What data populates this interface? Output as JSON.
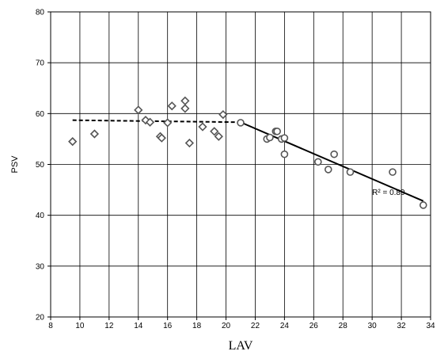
{
  "chart_data": {
    "type": "scatter",
    "xlabel": "LAV",
    "ylabel": "PSV",
    "xlim": [
      8,
      34
    ],
    "ylim": [
      20,
      80
    ],
    "x_ticks": [
      "8",
      "10",
      "12",
      "14",
      "16",
      "18",
      "20",
      "22",
      "24",
      "26",
      "28",
      "30",
      "32",
      "34"
    ],
    "y_ticks": [
      "20",
      "30",
      "40",
      "50",
      "60",
      "70",
      "80"
    ],
    "grid": true,
    "series": [
      {
        "marker": "diamond",
        "color": "#555555",
        "points": [
          [
            9.5,
            54.5
          ],
          [
            11.0,
            56.0
          ],
          [
            14.0,
            60.7
          ],
          [
            14.5,
            58.7
          ],
          [
            14.8,
            58.3
          ],
          [
            15.5,
            55.5
          ],
          [
            15.6,
            55.2
          ],
          [
            16.0,
            58.2
          ],
          [
            16.3,
            61.5
          ],
          [
            17.2,
            62.5
          ],
          [
            17.2,
            61.0
          ],
          [
            17.5,
            54.2
          ],
          [
            18.4,
            57.4
          ],
          [
            19.2,
            56.5
          ],
          [
            19.5,
            55.5
          ],
          [
            19.8,
            59.8
          ]
        ]
      },
      {
        "marker": "circle",
        "color": "#555555",
        "points": [
          [
            21.0,
            58.2
          ],
          [
            22.8,
            55.0
          ],
          [
            23.0,
            55.3
          ],
          [
            23.4,
            56.5
          ],
          [
            23.5,
            56.5
          ],
          [
            23.8,
            55.0
          ],
          [
            24.0,
            55.2
          ],
          [
            24.0,
            52.0
          ],
          [
            26.3,
            50.5
          ],
          [
            27.0,
            49.0
          ],
          [
            27.4,
            52.0
          ],
          [
            28.5,
            48.5
          ],
          [
            31.4,
            48.5
          ],
          [
            33.5,
            42.0
          ]
        ]
      }
    ],
    "trendlines": [
      {
        "style": "dashed",
        "from": [
          9.5,
          58.7
        ],
        "to": [
          21.0,
          58.3
        ]
      },
      {
        "style": "solid",
        "from": [
          21.0,
          58.3
        ],
        "to": [
          33.5,
          42.8
        ]
      }
    ],
    "annotation": {
      "text": "R² = 0.89",
      "x": 30.0,
      "y": 44.0
    }
  }
}
